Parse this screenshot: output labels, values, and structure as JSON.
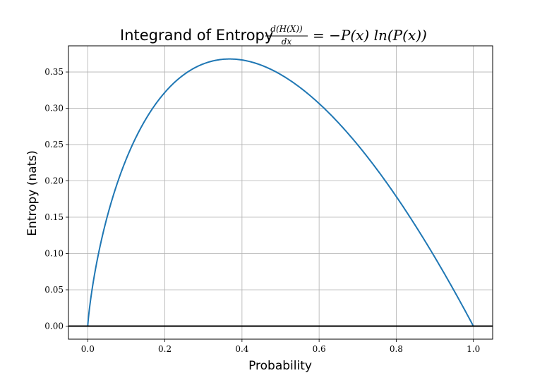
{
  "chart_data": {
    "type": "line",
    "title": {
      "prefix": "Integrand of Entropy",
      "formula_numerator": "d(H(X))",
      "formula_denominator": "dx",
      "formula_rhs": "= −P(x) ln(P(x))"
    },
    "xlabel": "Probability",
    "ylabel": "Entropy (nats)",
    "xlim": [
      -0.05,
      1.05
    ],
    "ylim": [
      -0.018,
      0.386
    ],
    "xticks": [
      0.0,
      0.2,
      0.4,
      0.6,
      0.8,
      1.0
    ],
    "xtick_labels": [
      "0.0",
      "0.2",
      "0.4",
      "0.6",
      "0.8",
      "1.0"
    ],
    "yticks": [
      0.0,
      0.05,
      0.1,
      0.15,
      0.2,
      0.25,
      0.3,
      0.35
    ],
    "ytick_labels": [
      "0.00",
      "0.05",
      "0.10",
      "0.15",
      "0.20",
      "0.25",
      "0.30",
      "0.35"
    ],
    "grid": true,
    "series": [
      {
        "color": "#1f77b4",
        "function": "-p*ln(p)",
        "x": [
          0.0,
          0.01,
          0.02,
          0.03,
          0.05,
          0.075,
          0.1,
          0.15,
          0.2,
          0.25,
          0.3,
          0.3679,
          0.4,
          0.45,
          0.5,
          0.55,
          0.6,
          0.65,
          0.7,
          0.75,
          0.8,
          0.85,
          0.9,
          0.95,
          1.0
        ],
        "y": [
          0.0,
          0.046,
          0.078,
          0.105,
          0.15,
          0.194,
          0.23,
          0.285,
          0.322,
          0.347,
          0.361,
          0.368,
          0.367,
          0.359,
          0.347,
          0.329,
          0.306,
          0.28,
          0.25,
          0.216,
          0.179,
          0.138,
          0.095,
          0.049,
          0.0
        ]
      }
    ],
    "reference_line": {
      "y": 0.0,
      "color": "#000000"
    }
  }
}
